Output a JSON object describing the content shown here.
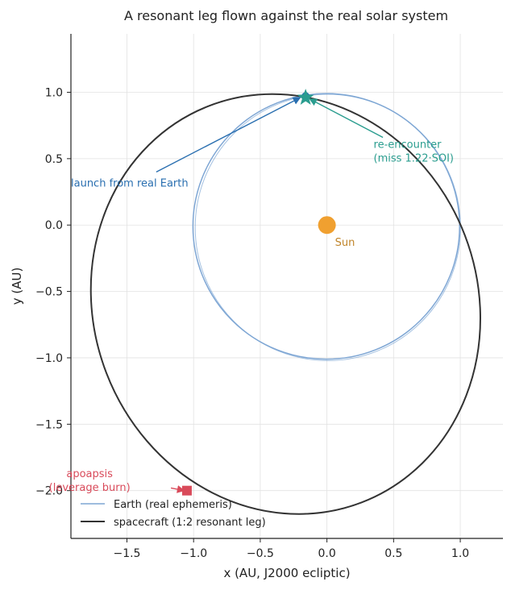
{
  "chart_data": {
    "type": "line",
    "title": "A resonant leg flown against the real solar system",
    "xlabel": "x (AU, J2000 ecliptic)",
    "ylabel": "y (AU)",
    "xlim": [
      -1.92,
      1.32
    ],
    "ylim": [
      -2.36,
      1.44
    ],
    "xticks": [
      -1.5,
      -1.0,
      -0.5,
      0.0,
      0.5,
      1.0
    ],
    "xtick_labels": [
      "−1.5",
      "−1.0",
      "−0.5",
      "0.0",
      "0.5",
      "1.0"
    ],
    "yticks": [
      -2.0,
      -1.5,
      -1.0,
      -0.5,
      0.0,
      0.5,
      1.0
    ],
    "ytick_labels": [
      "−2.0",
      "−1.5",
      "−1.0",
      "−0.5",
      "0.0",
      "0.5",
      "1.0"
    ],
    "grid": true,
    "legend_position": "lower-left",
    "series": [
      {
        "name": "Earth (real ephemeris)",
        "color": "#7ea6d4",
        "shape": "ellipse",
        "center": [
          -0.005,
          -0.01
        ],
        "semi_axes": [
          1.0,
          1.0
        ],
        "rotation_deg": 0
      },
      {
        "name": "spacecraft (1:2 resonant leg)",
        "color": "#333333",
        "shape": "ellipse",
        "center": [
          -0.31,
          -0.595
        ],
        "semi_axes": [
          1.44,
          1.6
        ],
        "rotation_deg": -21
      }
    ],
    "points": {
      "sun": {
        "x": 0.0,
        "y": 0.0,
        "label": "Sun",
        "color": "#f0a030"
      },
      "launch": {
        "x": -0.16,
        "y": 0.97,
        "color": "#2a6fb0"
      },
      "reencounter": {
        "x": -0.16,
        "y": 0.96,
        "color": "#2a9d8f"
      },
      "apoapsis": {
        "x": -1.05,
        "y": -2.0,
        "color": "#d94a5a"
      }
    },
    "annotations": [
      {
        "id": "launch",
        "text": [
          "launch from real Earth"
        ],
        "text_xy": [
          -1.92,
          0.29
        ],
        "arrow_from": [
          -1.28,
          0.4
        ],
        "arrow_to": [
          -0.2,
          0.96
        ],
        "color": "#2a6fb0"
      },
      {
        "id": "reencounter",
        "text": [
          "re-encounter",
          "(miss 1.22·SOI)"
        ],
        "text_xy": [
          0.35,
          0.58
        ],
        "arrow_from": [
          0.42,
          0.66
        ],
        "arrow_to": [
          -0.13,
          0.95
        ],
        "color": "#2a9d8f"
      },
      {
        "id": "apoapsis",
        "text": [
          "apoapsis",
          "(leverage burn)"
        ],
        "text_xy": [
          -1.78,
          -1.9
        ],
        "arrow_from": [
          -1.17,
          -1.98
        ],
        "arrow_to": [
          -1.07,
          -2.0
        ],
        "color": "#d94a5a"
      }
    ]
  }
}
